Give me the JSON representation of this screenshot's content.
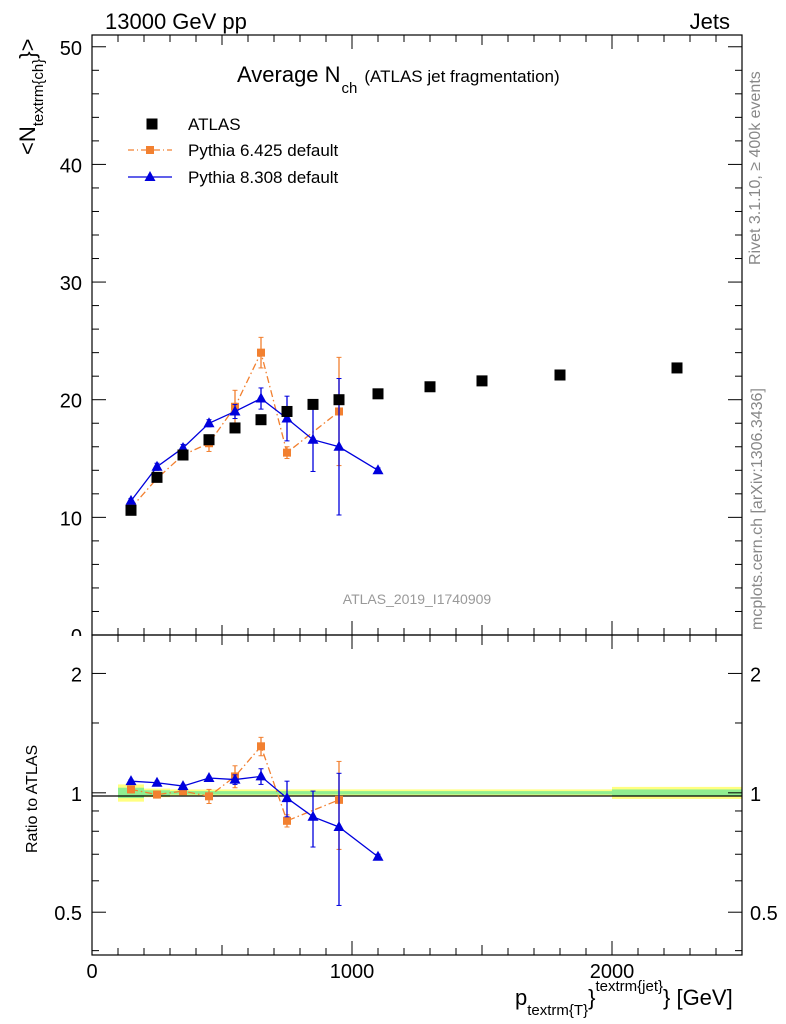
{
  "header": {
    "left": "13000 GeV pp",
    "right": "Jets"
  },
  "side_labels": {
    "rivet": "Rivet 3.1.10, ≥ 400k events",
    "mcplots": "mcplots.cern.ch [arXiv:1306.3436]"
  },
  "chart_data": [
    {
      "type": "scatter",
      "panel": "main",
      "title_main": "Average N",
      "title_sub": "ch",
      "title_tail": "(ATLAS jet fragmentation)",
      "ylabel": "<N_{textrm{ch}}>",
      "ylabel_main": "<N",
      "ylabel_sub": "textrm{ch}",
      "ylabel_tail": "}>",
      "xlim": [
        0,
        2500
      ],
      "ylim": [
        0,
        51
      ],
      "yticks": [
        10,
        20,
        30,
        40,
        50
      ],
      "ytick_labels": [
        "10",
        "20",
        "30",
        "40",
        "50"
      ],
      "ytick_zero_label": "0",
      "analysis_label": "ATLAS_2019_I1740909",
      "legend_position": "top-left",
      "series": [
        {
          "name": "ATLAS",
          "color": "#000000",
          "marker": "square",
          "x": [
            150,
            250,
            350,
            450,
            550,
            650,
            750,
            850,
            950,
            1100,
            1300,
            1500,
            1800,
            2250
          ],
          "y": [
            10.6,
            13.4,
            15.3,
            16.6,
            17.6,
            18.3,
            19.0,
            19.6,
            20.0,
            20.5,
            21.1,
            21.6,
            22.1,
            22.7
          ]
        },
        {
          "name": "Pythia 6.425 default",
          "color": "#f28030",
          "marker": "square",
          "line": "dashdot",
          "x": [
            150,
            250,
            350,
            450,
            550,
            650,
            750,
            950
          ],
          "y": [
            10.8,
            13.3,
            15.3,
            16.3,
            19.4,
            24.0,
            15.5,
            19.0
          ],
          "yerr": [
            0.3,
            0.3,
            0.4,
            0.7,
            1.4,
            1.3,
            0.5,
            4.6
          ]
        },
        {
          "name": "Pythia 8.308 default",
          "color": "#0000dd",
          "marker": "triangle",
          "line": "solid",
          "x": [
            150,
            250,
            350,
            450,
            550,
            650,
            750,
            850,
            950,
            1100
          ],
          "y": [
            11.4,
            14.3,
            15.9,
            18.0,
            19.0,
            20.1,
            18.4,
            16.6,
            16.0,
            14.0
          ],
          "yerr": [
            0.2,
            0.3,
            0.3,
            0.3,
            0.6,
            0.9,
            1.9,
            2.7,
            5.8,
            0.2
          ]
        }
      ]
    },
    {
      "type": "scatter",
      "panel": "ratio",
      "ylabel": "Ratio to ATLAS",
      "xlabel_main": "p",
      "xlabel_sub": "textrm{T}",
      "xlabel_mid": "}",
      "xlabel_sup": "textrm{jet}",
      "xlabel_tail": "} [GeV]",
      "xlim": [
        0,
        2500
      ],
      "ylim_log": [
        0.39,
        2.5
      ],
      "yticks": [
        0.5,
        1,
        2
      ],
      "ytick_labels": [
        "0.5",
        "1",
        "2"
      ],
      "xticks": [
        0,
        1000,
        2000
      ],
      "xtick_labels": [
        "0",
        "1000",
        "2000"
      ],
      "band_bins": [
        {
          "x0": 100,
          "x1": 200,
          "outer": [
            0.95,
            1.05
          ],
          "inner": [
            0.97,
            1.03
          ]
        },
        {
          "x0": 200,
          "x1": 300,
          "outer": [
            0.975,
            1.025
          ],
          "inner": [
            0.985,
            1.015
          ]
        },
        {
          "x0": 300,
          "x1": 2000,
          "outer": [
            0.98,
            1.02
          ],
          "inner": [
            0.99,
            1.01
          ]
        },
        {
          "x0": 2000,
          "x1": 2500,
          "outer": [
            0.965,
            1.035
          ],
          "inner": [
            0.98,
            1.02
          ]
        }
      ],
      "band_colors": {
        "outer": "#ffff80",
        "inner": "#90ee90"
      },
      "series": [
        {
          "name": "Pythia 6.425 default",
          "color": "#f28030",
          "marker": "square",
          "line": "dashdot",
          "x": [
            150,
            250,
            350,
            450,
            550,
            650,
            750,
            950
          ],
          "y": [
            1.02,
            0.99,
            1.01,
            0.98,
            1.1,
            1.31,
            0.85,
            0.96
          ],
          "yerr": [
            0.02,
            0.02,
            0.02,
            0.04,
            0.07,
            0.07,
            0.03,
            0.24
          ]
        },
        {
          "name": "Pythia 8.308 default",
          "color": "#0000dd",
          "marker": "triangle",
          "line": "solid",
          "x": [
            150,
            250,
            350,
            450,
            550,
            650,
            750,
            850,
            950,
            1100
          ],
          "y": [
            1.07,
            1.06,
            1.04,
            1.09,
            1.08,
            1.1,
            0.97,
            0.87,
            0.82,
            0.69
          ],
          "yerr": [
            0.01,
            0.01,
            0.01,
            0.01,
            0.03,
            0.05,
            0.1,
            0.14,
            0.3,
            0.01
          ]
        }
      ]
    }
  ]
}
